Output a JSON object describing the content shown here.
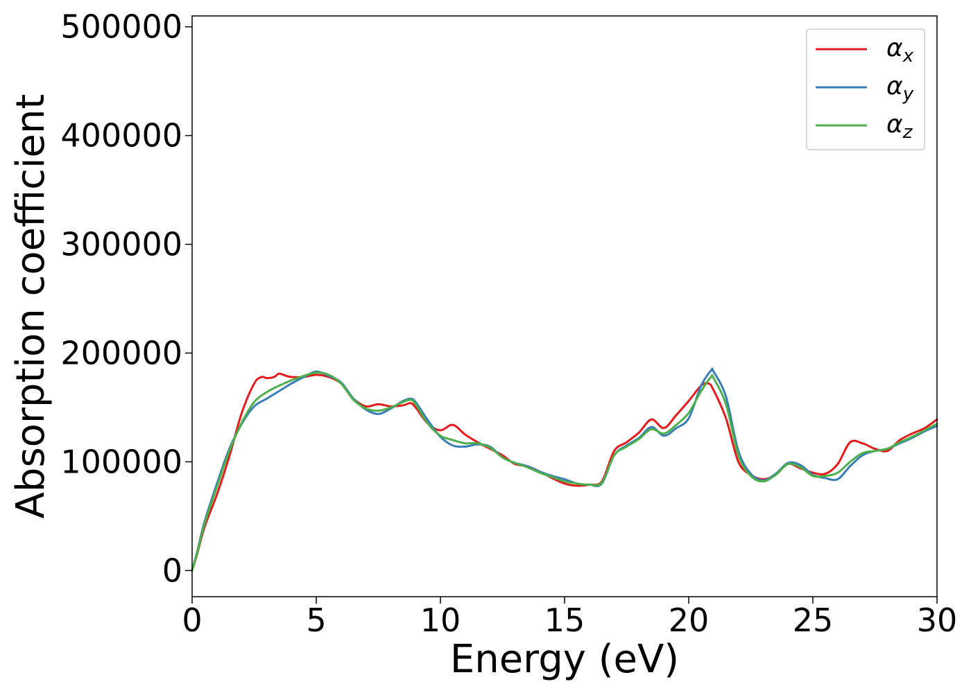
{
  "chart_data": {
    "type": "line",
    "xlabel": "Energy (eV)",
    "ylabel": "Absorption coefficient",
    "xlim": [
      0,
      30
    ],
    "ylim": [
      -24000,
      510000
    ],
    "xticks": [
      0,
      5,
      10,
      15,
      20,
      25,
      30
    ],
    "yticks": [
      0,
      100000,
      200000,
      300000,
      400000,
      500000
    ],
    "grid": false,
    "legend_position": "top-right",
    "series": [
      {
        "name": "α_x",
        "label_base": "α",
        "label_sub": "x",
        "color": "#e41a1c",
        "x": [
          0,
          0.2,
          0.5,
          1.0,
          1.5,
          2.0,
          2.5,
          2.8,
          3.0,
          3.3,
          3.5,
          3.8,
          4.0,
          4.5,
          5.0,
          5.5,
          6.0,
          6.5,
          7.0,
          7.5,
          8.0,
          8.5,
          8.8,
          9.0,
          9.5,
          10.0,
          10.5,
          11.0,
          11.5,
          12.0,
          12.5,
          13.0,
          13.5,
          14.0,
          14.5,
          15.0,
          15.5,
          16.0,
          16.5,
          17.0,
          17.5,
          18.0,
          18.5,
          19.0,
          19.5,
          20.0,
          20.5,
          20.8,
          21.0,
          21.5,
          22.0,
          22.5,
          23.0,
          23.5,
          24.0,
          24.5,
          25.0,
          25.5,
          26.0,
          26.5,
          27.0,
          27.5,
          28.0,
          28.5,
          29.0,
          29.5,
          30.0
        ],
        "y": [
          0,
          15000,
          40000,
          70000,
          105000,
          145000,
          172000,
          178000,
          177000,
          178000,
          181000,
          179000,
          178000,
          178000,
          180000,
          178000,
          172000,
          158000,
          151000,
          153000,
          151000,
          152000,
          154000,
          150000,
          135000,
          129000,
          134000,
          125000,
          118000,
          112000,
          106000,
          98000,
          96000,
          91000,
          85000,
          80000,
          78000,
          79000,
          82000,
          110000,
          118000,
          127000,
          139000,
          131000,
          143000,
          156000,
          170000,
          172000,
          166000,
          140000,
          100000,
          88000,
          84000,
          88000,
          98000,
          94000,
          90000,
          89000,
          98000,
          118000,
          117000,
          112000,
          110000,
          120000,
          126000,
          131000,
          139000
        ]
      },
      {
        "name": "α_y",
        "label_base": "α",
        "label_sub": "y",
        "color": "#377eb8",
        "x": [
          0,
          0.2,
          0.5,
          1.0,
          1.5,
          2.0,
          2.5,
          3.0,
          3.5,
          4.0,
          4.5,
          5.0,
          5.5,
          6.0,
          6.5,
          7.0,
          7.5,
          8.0,
          8.5,
          8.8,
          9.0,
          9.5,
          10.0,
          10.5,
          11.0,
          11.5,
          12.0,
          12.5,
          13.0,
          13.5,
          14.0,
          14.5,
          15.0,
          15.5,
          16.0,
          16.5,
          17.0,
          17.5,
          18.0,
          18.5,
          19.0,
          19.5,
          20.0,
          20.5,
          20.9,
          21.0,
          21.5,
          22.0,
          22.5,
          23.0,
          23.5,
          24.0,
          24.5,
          25.0,
          25.5,
          26.0,
          26.5,
          27.0,
          27.5,
          28.0,
          28.5,
          29.0,
          29.5,
          30.0
        ],
        "y": [
          0,
          17000,
          45000,
          80000,
          112000,
          135000,
          151000,
          158000,
          165000,
          172000,
          178000,
          183000,
          179000,
          173000,
          158000,
          148000,
          144000,
          149000,
          156000,
          158000,
          155000,
          138000,
          123000,
          115000,
          114000,
          116000,
          114000,
          104000,
          99000,
          96000,
          91000,
          87000,
          84000,
          80000,
          79000,
          80000,
          106000,
          115000,
          122000,
          132000,
          124000,
          131000,
          140000,
          170000,
          184000,
          183000,
          160000,
          110000,
          89000,
          83000,
          89000,
          99000,
          97000,
          88000,
          85000,
          84000,
          96000,
          106000,
          110000,
          112000,
          117000,
          122000,
          128000,
          133000
        ]
      },
      {
        "name": "α_z",
        "label_base": "α",
        "label_sub": "z",
        "color": "#4daf4a",
        "x": [
          0,
          0.2,
          0.5,
          1.0,
          1.5,
          2.0,
          2.5,
          3.0,
          3.5,
          4.0,
          4.5,
          5.0,
          5.5,
          6.0,
          6.5,
          7.0,
          7.5,
          8.0,
          8.5,
          8.8,
          9.0,
          9.5,
          10.0,
          10.5,
          11.0,
          11.5,
          12.0,
          12.5,
          13.0,
          13.5,
          14.0,
          14.5,
          15.0,
          15.5,
          16.0,
          16.5,
          17.0,
          17.5,
          18.0,
          18.5,
          19.0,
          19.5,
          20.0,
          20.5,
          20.9,
          21.0,
          21.5,
          22.0,
          22.5,
          23.0,
          23.5,
          24.0,
          24.5,
          25.0,
          25.5,
          26.0,
          26.5,
          27.0,
          27.5,
          28.0,
          28.5,
          29.0,
          29.5,
          30.0
        ],
        "y": [
          0,
          16000,
          43000,
          77000,
          110000,
          136000,
          155000,
          164000,
          170000,
          175000,
          179000,
          182000,
          180000,
          172000,
          157000,
          149000,
          147000,
          150000,
          155000,
          157000,
          153000,
          135000,
          124000,
          120000,
          117000,
          117000,
          113000,
          104000,
          99000,
          95000,
          90000,
          86000,
          82000,
          80000,
          79000,
          81000,
          106000,
          114000,
          121000,
          130000,
          126000,
          134000,
          145000,
          165000,
          178000,
          177000,
          153000,
          106000,
          87000,
          82000,
          88000,
          98000,
          95000,
          87000,
          87000,
          90000,
          100000,
          108000,
          110000,
          112000,
          118000,
          123000,
          129000,
          135000
        ]
      }
    ]
  }
}
